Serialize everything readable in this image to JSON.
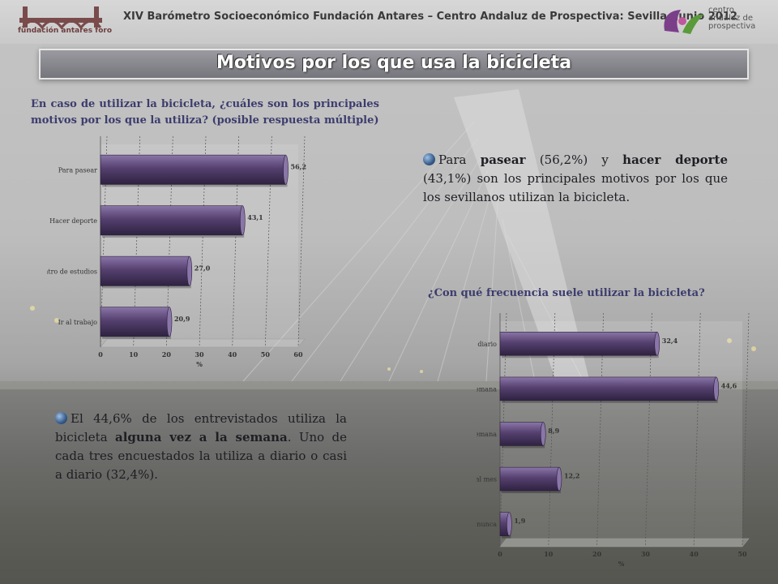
{
  "header": {
    "title": "XIV Barómetro Socioeconómico Fundación Antares – Centro Andaluz de Prospectiva: Sevilla, Junio 2012",
    "logo_left_text": "fundación antares foro",
    "logo_right_lines": [
      "centro",
      "andaluz de",
      "prospectiva"
    ]
  },
  "banner": {
    "title": "Motivos por los que usa la bicicleta"
  },
  "question1": "En caso de utilizar la bicicleta, ¿cuáles son los principales motivos por los que la utiliza? (posible respuesta múltiple)",
  "question2": "¿Con qué frecuencia suele utilizar la bicicleta?",
  "note1": {
    "p1": "Para ",
    "b1": "pasear",
    "p2": " (56,2%) y ",
    "b2": "hacer deporte",
    "p3": " (43,1%) son los principales motivos por los que los sevillanos utilizan la bicicleta."
  },
  "note2": {
    "p1": "El 44,6% de los entrevistados utiliza la bicicleta ",
    "b1": "alguna vez a la semana",
    "p2": ". Uno de cada tres encuestados la utiliza a diario o casi a diario (32,4%)."
  },
  "colors": {
    "bar": "#55406f",
    "bar_light": "#8a76a8",
    "bar_dark": "#2e2240"
  },
  "chart_data": [
    {
      "type": "bar",
      "orientation": "horizontal",
      "categories": [
        "Para pasear",
        "Hacer deporte",
        "Ir al centro de estudios",
        "Ir al trabajo"
      ],
      "values": [
        56.2,
        43.1,
        27.0,
        20.9
      ],
      "value_labels": [
        "56,2",
        "43,1",
        "27,0",
        "20,9"
      ],
      "xlabel": "%",
      "xlim": [
        0,
        60
      ],
      "xticks": [
        0,
        10,
        20,
        30,
        40,
        50,
        60
      ],
      "grid": true
    },
    {
      "type": "bar",
      "orientation": "horizontal",
      "categories": [
        "A diario/ casi a diario",
        "Alguna vez a la semana",
        "Sólo los fines de semana",
        "Alguna vez al mes",
        "Nunca o casi nunca"
      ],
      "values": [
        32.4,
        44.6,
        8.9,
        12.2,
        1.9
      ],
      "value_labels": [
        "32,4",
        "44,6",
        "8,9",
        "12,2",
        "1,9"
      ],
      "xlabel": "%",
      "xlim": [
        0,
        50
      ],
      "xticks": [
        0,
        10,
        20,
        30,
        40,
        50
      ],
      "grid": true
    }
  ]
}
